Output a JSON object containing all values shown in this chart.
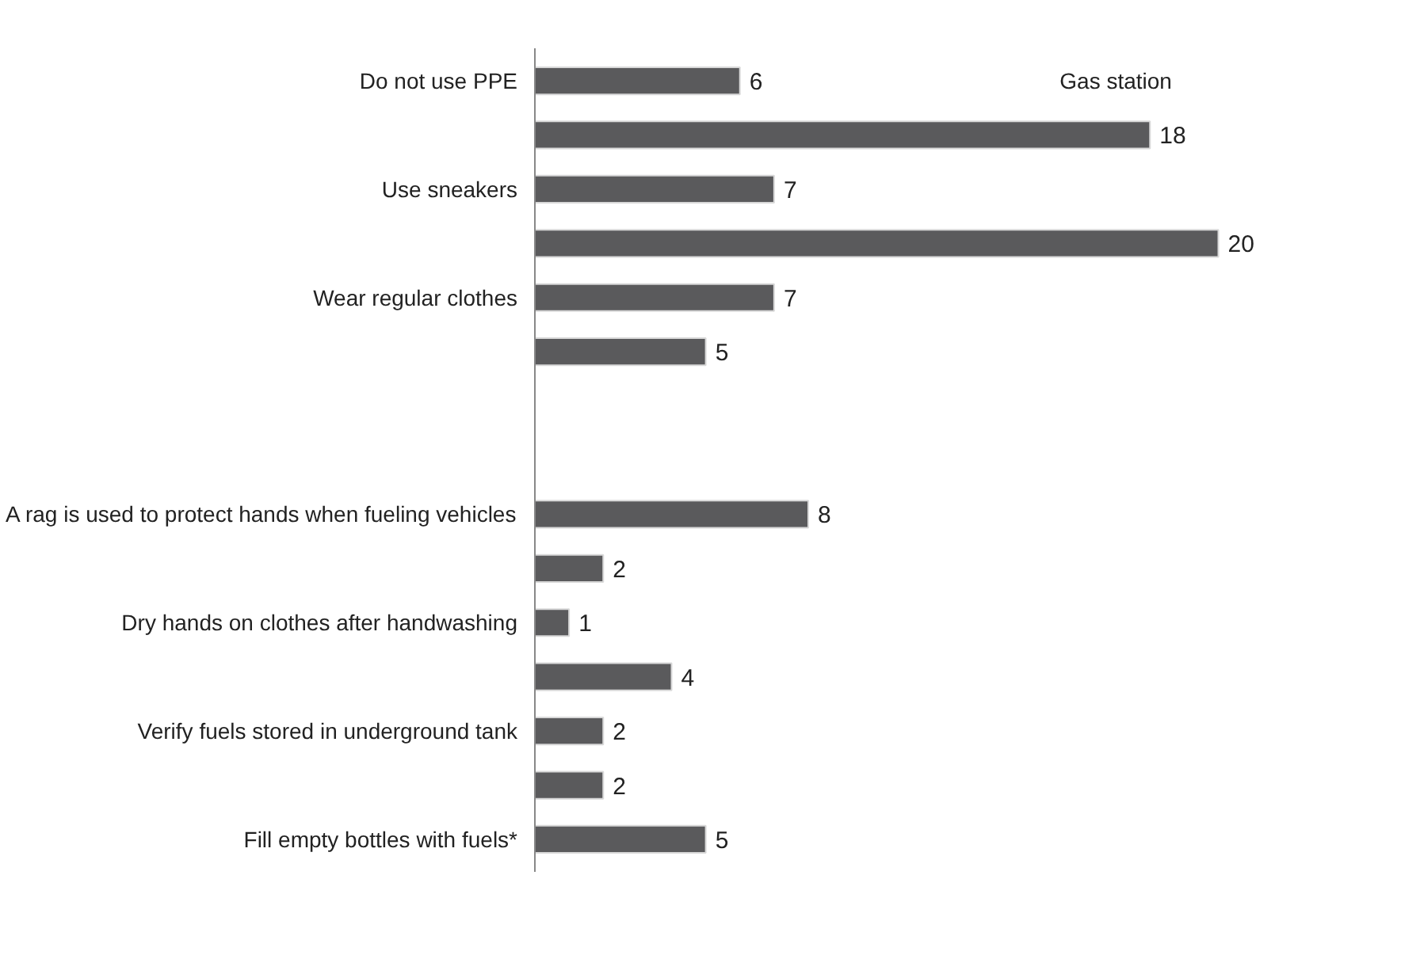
{
  "chart_data": {
    "type": "bar",
    "orientation": "horizontal",
    "categories": [
      "Do not use PPE",
      null,
      "Use sneakers",
      null,
      "Wear regular clothes",
      null,
      null,
      null,
      "A rag is used to protect hands when fueling vehicles",
      null,
      "Dry hands on clothes after handwashing",
      null,
      "Verify fuels stored in underground tank",
      null,
      "Fill empty bottles with fuels*"
    ],
    "values": [
      6,
      18,
      7,
      20,
      7,
      5,
      null,
      null,
      8,
      2,
      1,
      4,
      2,
      2,
      5
    ],
    "color": "#5a5a5c",
    "data_labels": true,
    "tick_labels": "y",
    "grid": false,
    "annotations": [
      "Gas station"
    ]
  }
}
